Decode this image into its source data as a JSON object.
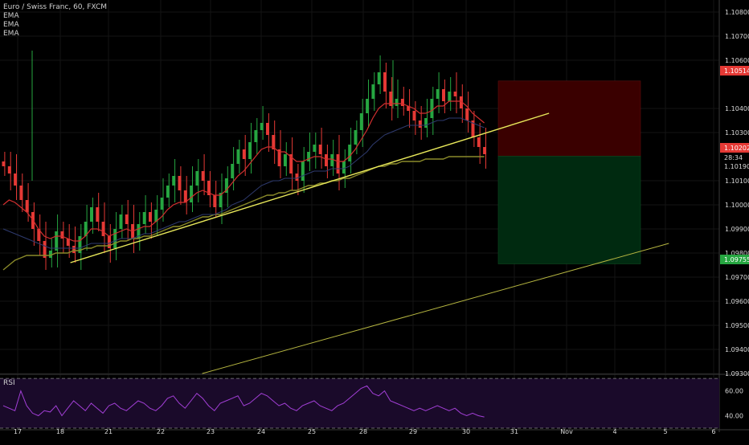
{
  "legend": {
    "symbol": "Euro / Swiss Franc, 60, FXCM",
    "ema1": "EMA",
    "ema2": "EMA",
    "ema3": "EMA"
  },
  "rsi_label": "RSI",
  "price_axis": {
    "ticks": [
      "1.10800",
      "1.10700",
      "1.10600",
      "1.10400",
      "1.10300",
      "1.10100",
      "1.10000",
      "1.09900",
      "1.09800",
      "1.09700",
      "1.09600",
      "1.09500",
      "1.09400",
      "1.09300"
    ],
    "tags": [
      {
        "text": "1.10514",
        "color": "#e53935",
        "text_color": "#ffffff"
      },
      {
        "text": "1.10202",
        "color": "#e53935",
        "text_color": "#ffffff"
      },
      {
        "text": "28:34",
        "color": "#000000",
        "text_color": "#d9d9d9"
      },
      {
        "text": "1.10190",
        "color": "#000000",
        "text_color": "#d9d9d9"
      },
      {
        "text": "1.09755",
        "color": "#26a641",
        "text_color": "#ffffff"
      }
    ]
  },
  "rsi_axis": {
    "ticks": [
      "60.00",
      "40.00"
    ]
  },
  "time_axis": {
    "labels": [
      "17",
      "18",
      "21",
      "22",
      "23",
      "24",
      "25",
      "28",
      "29",
      "30",
      "31",
      "Nov",
      "4",
      "5",
      "6"
    ]
  },
  "colors": {
    "up": "#26a641",
    "down": "#e53935",
    "ema_fast": "#d32f2f",
    "ema_mid": "#2e3a6e",
    "ema_slow": "#8a8a2a",
    "trendline": "#e8e85a",
    "trendline2": "#b5b540",
    "rsi_line": "#a23fd6",
    "rsi_fill": "#1a0a2a",
    "stop_zone": "#3a0000",
    "target_zone": "#002a10",
    "grid": "#141414",
    "axis_text": "#d9d9d9"
  },
  "chart_data": {
    "type": "candlestick",
    "title": "Euro / Swiss Franc, 60, FXCM",
    "ylim": [
      1.093,
      1.1085
    ],
    "y_ticks": [
      1.108,
      1.107,
      1.106,
      1.104,
      1.103,
      1.101,
      1.1,
      1.099,
      1.098,
      1.097,
      1.096,
      1.095,
      1.094,
      1.093
    ],
    "last_price": 1.1019,
    "countdown": "28:34",
    "position_tool": {
      "stop": 1.10514,
      "entry": 1.10202,
      "target": 1.09755
    },
    "close_path": [
      1.1016,
      1.1013,
      1.1008,
      1.1002,
      1.0997,
      1.099,
      1.0985,
      1.0978,
      1.0981,
      1.0989,
      1.0986,
      1.0983,
      1.098,
      1.0987,
      1.0993,
      1.0999,
      1.0993,
      1.0987,
      1.0982,
      1.099,
      1.0996,
      1.0992,
      1.0986,
      1.0992,
      1.0997,
      1.0993,
      1.0998,
      1.1003,
      1.1008,
      1.1012,
      1.1006,
      1.1001,
      1.1008,
      1.1014,
      1.101,
      1.1004,
      1.0999,
      1.1005,
      1.1011,
      1.1017,
      1.1023,
      1.1019,
      1.1026,
      1.1031,
      1.1034,
      1.1029,
      1.1023,
      1.1016,
      1.1021,
      1.1013,
      1.101,
      1.1018,
      1.1022,
      1.1025,
      1.1021,
      1.1016,
      1.1021,
      1.1013,
      1.1018,
      1.1025,
      1.1031,
      1.1038,
      1.1044,
      1.105,
      1.1055,
      1.1047,
      1.1041,
      1.1044,
      1.1041,
      1.1039,
      1.1035,
      1.1032,
      1.1036,
      1.1044,
      1.1048,
      1.1043,
      1.1047,
      1.1045,
      1.104,
      1.1035,
      1.1028,
      1.1024,
      1.1021
    ],
    "ema_fast": [
      1.1,
      1.1002,
      1.1001,
      1.0999,
      1.0997,
      1.0994,
      1.099,
      1.0987,
      1.0986,
      1.0987,
      1.0987,
      1.0986,
      1.0985,
      1.0985,
      1.0987,
      1.099,
      1.099,
      1.0989,
      1.0987,
      1.0988,
      1.0989,
      1.099,
      1.0989,
      1.099,
      1.0991,
      1.0991,
      1.0993,
      1.0995,
      1.0998,
      1.1,
      1.1001,
      1.1001,
      1.1003,
      1.1005,
      1.1006,
      1.1005,
      1.1004,
      1.1004,
      1.1006,
      1.1009,
      1.1012,
      1.1014,
      1.1017,
      1.102,
      1.1023,
      1.1024,
      1.1024,
      1.1022,
      1.1022,
      1.102,
      1.1018,
      1.1018,
      1.1019,
      1.102,
      1.102,
      1.1019,
      1.1019,
      1.1018,
      1.1018,
      1.102,
      1.1023,
      1.1027,
      1.1031,
      1.1036,
      1.104,
      1.1042,
      1.1042,
      1.1042,
      1.1042,
      1.1041,
      1.104,
      1.1038,
      1.1038,
      1.1039,
      1.1041,
      1.1041,
      1.1043,
      1.1043,
      1.1043,
      1.1041,
      1.1038,
      1.1036,
      1.1034
    ],
    "ema_mid": [
      1.099,
      1.0989,
      1.0988,
      1.0987,
      1.0986,
      1.0985,
      1.0984,
      1.0983,
      1.0982,
      1.0982,
      1.0982,
      1.0982,
      1.0982,
      1.0982,
      1.0983,
      1.0984,
      1.0984,
      1.0984,
      1.0984,
      1.0985,
      1.0986,
      1.0986,
      1.0986,
      1.0987,
      1.0988,
      1.0988,
      1.0989,
      1.099,
      1.0991,
      1.0992,
      1.0993,
      1.0993,
      1.0994,
      1.0995,
      1.0996,
      1.0996,
      1.0996,
      1.0997,
      1.0998,
      1.1,
      1.1001,
      1.1002,
      1.1004,
      1.1006,
      1.1008,
      1.1009,
      1.101,
      1.101,
      1.1011,
      1.1011,
      1.1011,
      1.1012,
      1.1013,
      1.1014,
      1.1014,
      1.1014,
      1.1015,
      1.1015,
      1.1015,
      1.1016,
      1.1018,
      1.102,
      1.1022,
      1.1025,
      1.1027,
      1.1029,
      1.103,
      1.1031,
      1.1032,
      1.1033,
      1.1033,
      1.1033,
      1.1033,
      1.1034,
      1.1035,
      1.1035,
      1.1036,
      1.1036,
      1.1036,
      1.1035,
      1.1034,
      1.1033,
      1.1032
    ],
    "ema_slow": [
      1.0973,
      1.0975,
      1.0977,
      1.0978,
      1.0979,
      1.0979,
      1.0979,
      1.0979,
      1.0979,
      1.098,
      1.098,
      1.098,
      1.0981,
      1.0981,
      1.0982,
      1.0982,
      1.0983,
      1.0983,
      1.0983,
      1.0984,
      1.0985,
      1.0985,
      1.0986,
      1.0986,
      1.0987,
      1.0987,
      1.0988,
      1.0989,
      1.099,
      1.0991,
      1.0991,
      1.0992,
      1.0993,
      1.0994,
      1.0995,
      1.0995,
      1.0996,
      1.0996,
      1.0997,
      1.0998,
      1.0999,
      1.1,
      1.1001,
      1.1002,
      1.1003,
      1.1004,
      1.1004,
      1.1005,
      1.1005,
      1.1006,
      1.1006,
      1.1007,
      1.1008,
      1.1008,
      1.1009,
      1.1009,
      1.101,
      1.101,
      1.1011,
      1.1011,
      1.1012,
      1.1013,
      1.1014,
      1.1015,
      1.1016,
      1.1016,
      1.1017,
      1.1017,
      1.1018,
      1.1018,
      1.1018,
      1.1018,
      1.1019,
      1.1019,
      1.1019,
      1.1019,
      1.102,
      1.102,
      1.102,
      1.102,
      1.102,
      1.102,
      1.102
    ],
    "trendlines": [
      {
        "from": [
          0.094,
          1.0976
        ],
        "to": [
          0.733,
          1.1038
        ]
      },
      {
        "from": [
          0.27,
          1.093
        ],
        "to": [
          0.893,
          1.0984
        ]
      }
    ],
    "rsi": {
      "ylim": [
        30,
        72
      ],
      "levels": [
        70,
        30
      ],
      "ticks": [
        60,
        40
      ],
      "values": [
        48,
        46,
        44,
        60,
        48,
        42,
        40,
        44,
        43,
        48,
        40,
        46,
        52,
        48,
        44,
        50,
        46,
        42,
        48,
        50,
        46,
        44,
        48,
        52,
        50,
        46,
        44,
        48,
        54,
        56,
        50,
        46,
        52,
        58,
        54,
        48,
        44,
        50,
        52,
        54,
        56,
        48,
        50,
        54,
        58,
        56,
        52,
        48,
        50,
        46,
        44,
        48,
        50,
        52,
        48,
        46,
        44,
        48,
        50,
        54,
        58,
        62,
        64,
        58,
        56,
        60,
        52,
        50,
        48,
        46,
        44,
        46,
        44,
        46,
        48,
        46,
        44,
        46,
        42,
        40,
        42,
        40,
        39
      ]
    }
  }
}
